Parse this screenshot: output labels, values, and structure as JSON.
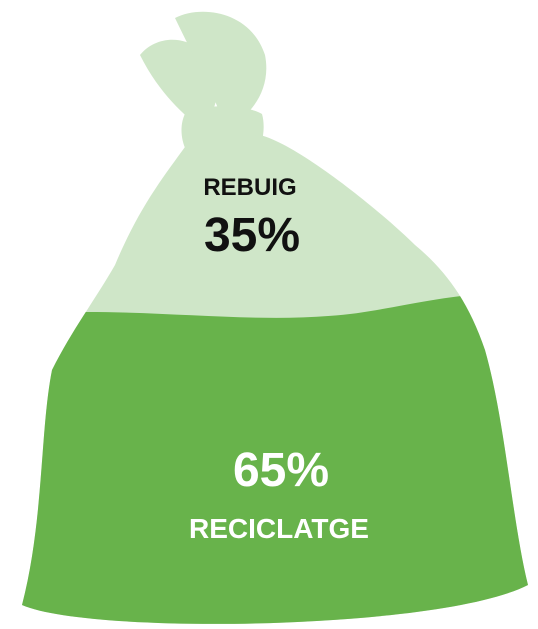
{
  "chart_data": {
    "type": "bar",
    "orientation": "stacked-fill",
    "title": "",
    "segments": [
      {
        "label": "REBUIG",
        "value": 35,
        "display": "35%",
        "color": "#cfe6c8"
      },
      {
        "label": "RECICLATGE",
        "value": 65,
        "display": "65%",
        "color": "#68b34b"
      }
    ],
    "unit": "%"
  },
  "colors": {
    "top_fill": "#cfe6c8",
    "bottom_fill": "#68b34b",
    "top_text": "#111111",
    "bottom_text": "#ffffff",
    "background": "#ffffff"
  }
}
